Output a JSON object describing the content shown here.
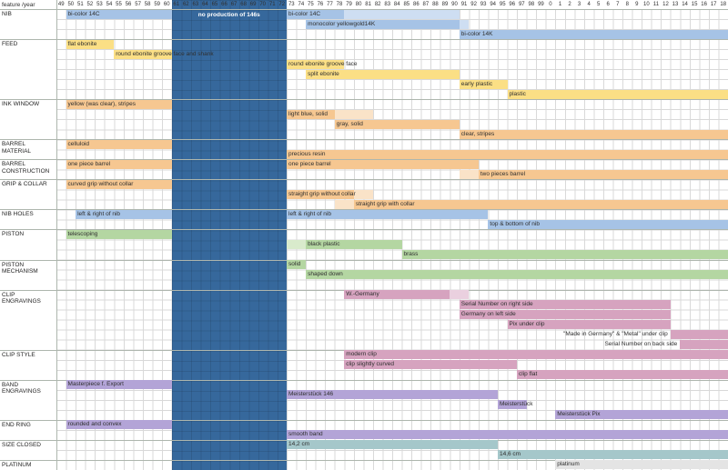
{
  "header_left": "feature /year",
  "chart_data": {
    "type": "bar",
    "variant": "gantt-feature-timeline",
    "title": "feature /year",
    "x_axis": {
      "labels": [
        "49",
        "50",
        "51",
        "52",
        "53",
        "54",
        "55",
        "56",
        "57",
        "58",
        "59",
        "60",
        "61",
        "62",
        "63",
        "64",
        "65",
        "66",
        "67",
        "68",
        "69",
        "70",
        "71",
        "72",
        "73",
        "74",
        "75",
        "76",
        "77",
        "78",
        "79",
        "80",
        "81",
        "82",
        "83",
        "84",
        "85",
        "86",
        "87",
        "88",
        "89",
        "90",
        "91",
        "92",
        "93",
        "94",
        "95",
        "96",
        "97",
        "98",
        "99",
        "0",
        "1",
        "2",
        "3",
        "4",
        "5",
        "6",
        "7",
        "8",
        "9",
        "10",
        "11",
        "12",
        "13",
        "14",
        "15",
        "16",
        "17",
        "18"
      ]
    },
    "no_production": {
      "label": "no production of 146s",
      "start": "61",
      "end": "72",
      "color": "#36689c"
    },
    "colors": {
      "blue": "#a6c3e6",
      "blueL": "#cedef2",
      "yellow": "#fbdf85",
      "yellowL": "#fdeebb",
      "orange": "#f6c791",
      "orangeL": "#fae3c8",
      "green": "#b4d6a2",
      "greenL": "#d9ebcc",
      "pink": "#d6a3bf",
      "pinkL": "#ead0df",
      "purple": "#b3a4d7",
      "teal": "#a5c7ca",
      "platinum": "#e4e4e4",
      "grid": "#d9d9d9",
      "section_line": "#aeb6ae",
      "text": "#2f2f2f"
    },
    "sections": [
      {
        "name": "NIB",
        "rows": [
          [
            {
              "label": "bi-color 14C",
              "start": "50",
              "end": "60",
              "color": "blue"
            },
            {
              "label": "bi-color 14C",
              "start": "73",
              "end": "78",
              "color": "blue"
            },
            {
              "start": "79",
              "end": "90",
              "color": "blueL"
            }
          ],
          [
            {
              "label": "monocolor yellowgold14K",
              "start": "75",
              "end": "90",
              "color": "blue"
            },
            {
              "start": "91",
              "end": "91",
              "color": "blueL"
            }
          ],
          [
            {
              "label": "bi-color 14K",
              "start": "91",
              "end": "18",
              "color": "blue"
            }
          ]
        ]
      },
      {
        "name": "FEED",
        "rows": [
          [
            {
              "label": "flat ebonite",
              "start": "50",
              "end": "54",
              "color": "yellow"
            }
          ],
          [
            {
              "label": "round ebonite groove face and shank",
              "start": "55",
              "end": "60",
              "color": "yellow"
            }
          ],
          [
            {
              "label": "round ebonite groove face",
              "start": "73",
              "end": "78",
              "color": "yellow"
            }
          ],
          [
            {
              "label": "split ebonite",
              "start": "75",
              "end": "90",
              "color": "yellow"
            }
          ],
          [
            {
              "label": "early plastic",
              "start": "91",
              "end": "95",
              "color": "yellow"
            }
          ],
          [
            {
              "label": "plastic",
              "start": "96",
              "end": "18",
              "color": "yellow"
            }
          ]
        ]
      },
      {
        "name": "INK WINDOW",
        "rows": [
          [
            {
              "label": "yellow (was clear), stripes",
              "start": "50",
              "end": "60",
              "color": "orange"
            }
          ],
          [
            {
              "label": "light blue, solid",
              "start": "73",
              "end": "77",
              "color": "orange"
            },
            {
              "start": "78",
              "end": "81",
              "color": "orangeL"
            }
          ],
          [
            {
              "label": "gray, solid",
              "start": "78",
              "end": "90",
              "color": "orange"
            }
          ],
          [
            {
              "label": "clear, stripes",
              "start": "91",
              "end": "18",
              "color": "orange"
            }
          ]
        ]
      },
      {
        "name": "BARREL MATERIAL",
        "rows": [
          [
            {
              "label": "celluloid",
              "start": "50",
              "end": "60",
              "color": "orange"
            }
          ],
          [
            {
              "label": "precious resin",
              "start": "73",
              "end": "18",
              "color": "orange"
            }
          ]
        ]
      },
      {
        "name": "BARREL CONSTRUCTION",
        "rows": [
          [
            {
              "label": "one piece barrel",
              "start": "50",
              "end": "60",
              "color": "orange"
            },
            {
              "label": "one piece barrel",
              "start": "73",
              "end": "92",
              "color": "orange"
            }
          ],
          [
            {
              "start": "91",
              "end": "92",
              "color": "orangeL"
            },
            {
              "label": "two pieces barrel",
              "start": "93",
              "end": "18",
              "color": "orange"
            }
          ]
        ]
      },
      {
        "name": "GRIP & COLLAR",
        "rows": [
          [
            {
              "label": "curved grip without collar",
              "start": "50",
              "end": "60",
              "color": "orange"
            }
          ],
          [
            {
              "label": "straight grip without collar",
              "start": "73",
              "end": "79",
              "color": "orange"
            },
            {
              "start": "80",
              "end": "81",
              "color": "orangeL"
            }
          ],
          [
            {
              "start": "78",
              "end": "79",
              "color": "orangeL"
            },
            {
              "label": "straight grip with collar",
              "start": "80",
              "end": "18",
              "color": "orange"
            }
          ]
        ]
      },
      {
        "name": "NIB HOLES",
        "rows": [
          [
            {
              "label": "left & right of nib",
              "start": "51",
              "end": "60",
              "color": "blue"
            },
            {
              "label": "left & right of nib",
              "start": "73",
              "end": "93",
              "color": "blue"
            }
          ],
          [
            {
              "label": "top & bottom of nib",
              "start": "94",
              "end": "18",
              "color": "blue"
            }
          ]
        ]
      },
      {
        "name": "PISTON",
        "rows": [
          [
            {
              "label": "telescoping",
              "start": "50",
              "end": "60",
              "color": "green"
            }
          ],
          [
            {
              "start": "73",
              "end": "74",
              "color": "greenL"
            },
            {
              "label": "black plastic",
              "start": "75",
              "end": "84",
              "color": "green"
            }
          ],
          [
            {
              "label": "brass",
              "start": "85",
              "end": "18",
              "color": "green"
            }
          ]
        ]
      },
      {
        "name": "PISTON MECHANISM",
        "rows": [
          [
            {
              "label": "solid",
              "start": "73",
              "end": "74",
              "color": "green"
            }
          ],
          [
            {
              "label": "shaped down",
              "start": "75",
              "end": "18",
              "color": "green"
            }
          ],
          []
        ]
      },
      {
        "name": "CLIP ENGRAVINGS",
        "rows": [
          [
            {
              "label": "W.-Germany",
              "start": "79",
              "end": "89",
              "color": "pink"
            },
            {
              "start": "90",
              "end": "91",
              "color": "pinkL"
            }
          ],
          [
            {
              "label": "Serial Number on right side",
              "start": "91",
              "end": "12",
              "color": "pink"
            }
          ],
          [
            {
              "label": "Germany on left side",
              "start": "91",
              "end": "12",
              "color": "pink"
            }
          ],
          [
            {
              "label": "Pix under clip",
              "start": "96",
              "end": "12",
              "color": "pink"
            }
          ],
          [
            {
              "label": "\"Made in Germany\" & \"Metal\" under clip",
              "start": "13",
              "end": "18",
              "color": "pink",
              "label_outside": true
            }
          ],
          [
            {
              "label": "Serial Number on back side",
              "start": "14",
              "end": "18",
              "color": "pink",
              "label_outside": true
            }
          ]
        ]
      },
      {
        "name": "CLIP STYLE",
        "rows": [
          [
            {
              "label": "modern clip",
              "start": "79",
              "end": "18",
              "color": "pink"
            }
          ],
          [
            {
              "label": "clip slightly curved",
              "start": "79",
              "end": "96",
              "color": "pink"
            }
          ],
          [
            {
              "label": "clip flat",
              "start": "97",
              "end": "18",
              "color": "pink"
            }
          ]
        ]
      },
      {
        "name": "BAND ENGRAVINGS",
        "rows": [
          [
            {
              "label": "Masterpiece f. Export",
              "start": "50",
              "end": "60",
              "color": "purple"
            }
          ],
          [
            {
              "label": "Meisterstück 146",
              "start": "73",
              "end": "94",
              "color": "purple"
            }
          ],
          [
            {
              "label": "Meisterstück",
              "start": "95",
              "end": "97",
              "color": "purple"
            }
          ],
          [
            {
              "label": "Meisterstück Pix",
              "start": "1",
              "end": "18",
              "color": "purple"
            }
          ]
        ]
      },
      {
        "name": "END RING",
        "rows": [
          [
            {
              "label": "rounded and convex",
              "start": "50",
              "end": "60",
              "color": "purple"
            }
          ],
          [
            {
              "label": "smooth band",
              "start": "73",
              "end": "18",
              "color": "purple"
            }
          ]
        ]
      },
      {
        "name": "SIZE CLOSED",
        "rows": [
          [
            {
              "label": "14,2 cm",
              "start": "73",
              "end": "94",
              "color": "teal"
            }
          ],
          [
            {
              "label": "14,6 cm",
              "start": "95",
              "end": "18",
              "color": "teal"
            }
          ]
        ]
      },
      {
        "name": "PLATINUM",
        "rows": [
          [
            {
              "label": "platinum",
              "start": "1",
              "end": "18",
              "color": "platinum"
            }
          ]
        ]
      }
    ]
  }
}
